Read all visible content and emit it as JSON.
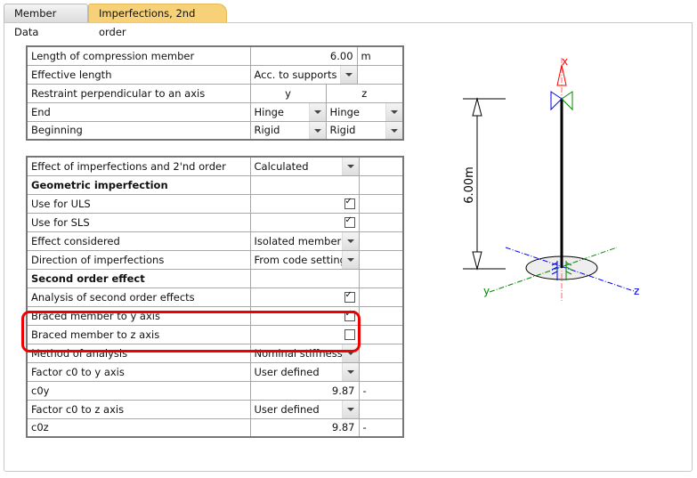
{
  "tabs": [
    {
      "label": "Member Data",
      "active": false
    },
    {
      "label": "Imperfections, 2nd order",
      "active": true
    }
  ],
  "table1": {
    "length": {
      "label": "Length of compression member",
      "value": "6.00",
      "unit": "m"
    },
    "effective_length": {
      "label": "Effective length",
      "value": "Acc. to supports"
    },
    "restraint": {
      "label": "Restraint perpendicular to an axis",
      "y": "y",
      "z": "z"
    },
    "end": {
      "label": "End",
      "y": "Hinge",
      "z": "Hinge"
    },
    "beginning": {
      "label": "Beginning",
      "y": "Rigid",
      "z": "Rigid"
    }
  },
  "table2": {
    "effect": {
      "label": "Effect of imperfections and 2'nd order",
      "value": "Calculated"
    },
    "geom_header": "Geometric imperfection",
    "uls": {
      "label": "Use for ULS",
      "checked": true
    },
    "sls": {
      "label": "Use for SLS",
      "checked": true
    },
    "effect_considered": {
      "label": "Effect considered",
      "value": "Isolated member"
    },
    "direction": {
      "label": "Direction of imperfections",
      "value": "From code setting"
    },
    "second_header": "Second order effect",
    "analysis": {
      "label": "Analysis of second order effects",
      "checked": true
    },
    "braced_y": {
      "label": "Braced member to y axis",
      "checked": true
    },
    "braced_z": {
      "label": "Braced member to z axis",
      "checked": false
    },
    "method": {
      "label": "Method of analysis",
      "value": "Nominal stiffness"
    },
    "factor_y": {
      "label": "Factor c0 to y axis",
      "value": "User defined"
    },
    "c0y": {
      "label": "c0y",
      "value": "9.87",
      "unit": "-"
    },
    "factor_z": {
      "label": "Factor c0 to z axis",
      "value": "User defined"
    },
    "c0z": {
      "label": "c0z",
      "value": "9.87",
      "unit": "-"
    }
  },
  "diagram": {
    "dimension": "6.00m",
    "axis_x": "x",
    "axis_y": "y",
    "axis_z": "z",
    "colors": {
      "x": "#ff0000",
      "y": "#008000",
      "z": "#0000ff"
    }
  }
}
